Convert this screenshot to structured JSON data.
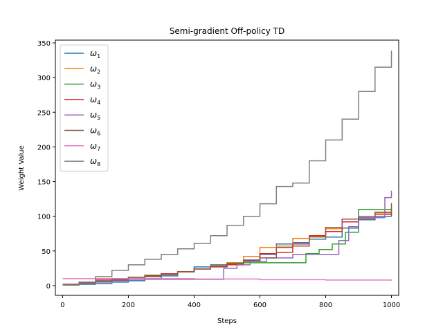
{
  "chart_data": {
    "type": "line",
    "title": "Semi-gradient Off-policy TD",
    "xlabel": "Steps",
    "ylabel": "Weight Value",
    "xlim": [
      -22,
      1022
    ],
    "ylim": [
      -14,
      354
    ],
    "xticks": [
      0,
      200,
      400,
      600,
      800,
      1000
    ],
    "yticks": [
      0,
      50,
      100,
      150,
      200,
      250,
      300,
      350
    ],
    "legend_position": "top-left",
    "grid": false,
    "series": [
      {
        "name": "ω1",
        "sub": "1",
        "color": "#1f77b4",
        "points": [
          [
            0,
            2
          ],
          [
            50,
            2
          ],
          [
            100,
            3
          ],
          [
            150,
            5
          ],
          [
            200,
            7
          ],
          [
            250,
            10
          ],
          [
            300,
            14
          ],
          [
            350,
            20
          ],
          [
            400,
            27
          ],
          [
            450,
            30
          ],
          [
            500,
            33
          ],
          [
            550,
            37
          ],
          [
            600,
            45
          ],
          [
            650,
            60
          ],
          [
            700,
            62
          ],
          [
            750,
            67
          ],
          [
            800,
            70
          ],
          [
            850,
            83
          ],
          [
            900,
            95
          ],
          [
            950,
            100
          ],
          [
            1000,
            108
          ]
        ]
      },
      {
        "name": "ω2",
        "sub": "2",
        "color": "#ff7f0e",
        "points": [
          [
            0,
            2
          ],
          [
            50,
            3
          ],
          [
            100,
            5
          ],
          [
            150,
            7
          ],
          [
            200,
            10
          ],
          [
            250,
            13
          ],
          [
            300,
            16
          ],
          [
            350,
            20
          ],
          [
            400,
            24
          ],
          [
            450,
            29
          ],
          [
            500,
            33
          ],
          [
            550,
            42
          ],
          [
            600,
            55
          ],
          [
            650,
            57
          ],
          [
            700,
            68
          ],
          [
            750,
            70
          ],
          [
            800,
            82
          ],
          [
            850,
            96
          ],
          [
            900,
            100
          ],
          [
            950,
            105
          ],
          [
            1000,
            112
          ]
        ]
      },
      {
        "name": "ω3",
        "sub": "3",
        "color": "#2ca02c",
        "points": [
          [
            0,
            1
          ],
          [
            50,
            3
          ],
          [
            100,
            6
          ],
          [
            150,
            9
          ],
          [
            200,
            12
          ],
          [
            250,
            15
          ],
          [
            300,
            17
          ],
          [
            350,
            20
          ],
          [
            400,
            24
          ],
          [
            450,
            28
          ],
          [
            500,
            31
          ],
          [
            550,
            33
          ],
          [
            600,
            33
          ],
          [
            650,
            33
          ],
          [
            700,
            33
          ],
          [
            740,
            46
          ],
          [
            780,
            52
          ],
          [
            820,
            60
          ],
          [
            860,
            77
          ],
          [
            900,
            110
          ],
          [
            950,
            110
          ],
          [
            1000,
            110
          ]
        ]
      },
      {
        "name": "ω4",
        "sub": "4",
        "color": "#d62728",
        "points": [
          [
            0,
            1
          ],
          [
            50,
            5
          ],
          [
            100,
            9
          ],
          [
            150,
            10
          ],
          [
            200,
            12
          ],
          [
            250,
            14
          ],
          [
            300,
            17
          ],
          [
            350,
            20
          ],
          [
            400,
            24
          ],
          [
            450,
            27
          ],
          [
            500,
            30
          ],
          [
            550,
            35
          ],
          [
            600,
            46
          ],
          [
            650,
            48
          ],
          [
            700,
            60
          ],
          [
            750,
            72
          ],
          [
            800,
            78
          ],
          [
            850,
            92
          ],
          [
            900,
            97
          ],
          [
            950,
            103
          ],
          [
            1000,
            105
          ]
        ]
      },
      {
        "name": "ω5",
        "sub": "5",
        "color": "#9467bd",
        "points": [
          [
            0,
            1
          ],
          [
            50,
            3
          ],
          [
            100,
            5
          ],
          [
            150,
            7
          ],
          [
            200,
            9
          ],
          [
            250,
            9
          ],
          [
            300,
            9
          ],
          [
            350,
            9
          ],
          [
            400,
            9
          ],
          [
            450,
            9
          ],
          [
            480,
            9
          ],
          [
            490,
            25
          ],
          [
            530,
            30
          ],
          [
            570,
            35
          ],
          [
            620,
            40
          ],
          [
            700,
            45
          ],
          [
            800,
            45
          ],
          [
            840,
            65
          ],
          [
            870,
            85
          ],
          [
            900,
            98
          ],
          [
            940,
            98
          ],
          [
            980,
            127
          ],
          [
            1000,
            137
          ]
        ]
      },
      {
        "name": "ω6",
        "sub": "6",
        "color": "#8c564b",
        "points": [
          [
            0,
            2
          ],
          [
            50,
            4
          ],
          [
            100,
            7
          ],
          [
            150,
            8
          ],
          [
            200,
            12
          ],
          [
            250,
            13
          ],
          [
            300,
            16
          ],
          [
            350,
            20
          ],
          [
            400,
            24
          ],
          [
            450,
            28
          ],
          [
            500,
            32
          ],
          [
            550,
            36
          ],
          [
            600,
            40
          ],
          [
            650,
            55
          ],
          [
            700,
            57
          ],
          [
            750,
            71
          ],
          [
            800,
            84
          ],
          [
            850,
            96
          ],
          [
            900,
            100
          ],
          [
            950,
            106
          ],
          [
            1000,
            119
          ]
        ]
      },
      {
        "name": "ω7",
        "sub": "7",
        "color": "#e377c2",
        "points": [
          [
            0,
            10
          ],
          [
            200,
            10
          ],
          [
            400,
            9.5
          ],
          [
            600,
            8.5
          ],
          [
            800,
            8
          ],
          [
            1000,
            7
          ]
        ]
      },
      {
        "name": "ω8",
        "sub": "8",
        "color": "#7f7f7f",
        "points": [
          [
            0,
            1
          ],
          [
            50,
            5
          ],
          [
            100,
            13
          ],
          [
            150,
            22
          ],
          [
            200,
            30
          ],
          [
            250,
            38
          ],
          [
            300,
            45
          ],
          [
            350,
            53
          ],
          [
            400,
            61
          ],
          [
            450,
            72
          ],
          [
            500,
            87
          ],
          [
            550,
            100
          ],
          [
            600,
            118
          ],
          [
            650,
            143
          ],
          [
            700,
            148
          ],
          [
            750,
            180
          ],
          [
            800,
            210
          ],
          [
            850,
            240
          ],
          [
            900,
            280
          ],
          [
            950,
            315
          ],
          [
            1000,
            339
          ]
        ]
      }
    ]
  }
}
